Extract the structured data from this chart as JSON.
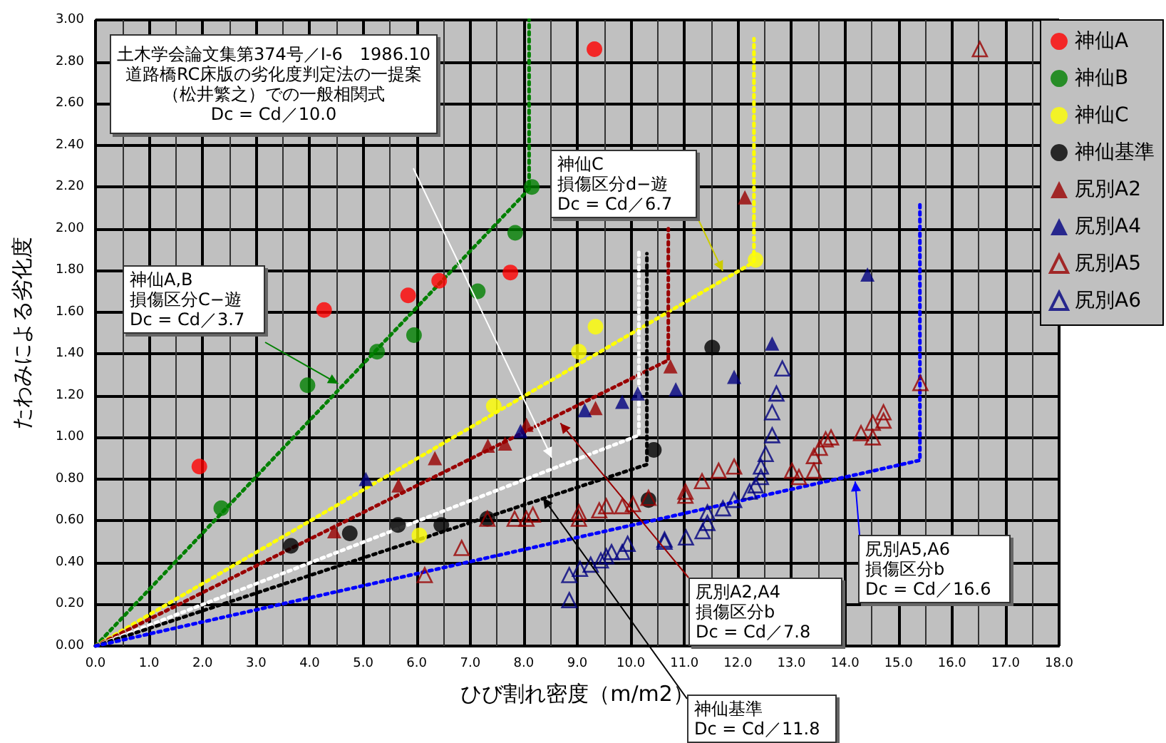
{
  "chart_data": {
    "type": "scatter",
    "xlabel": "ひび割れ密度（m/m2）",
    "ylabel": "たわみによる劣化度",
    "xlim": [
      0,
      18
    ],
    "ylim": [
      0,
      3
    ],
    "xticks": [
      {
        "value": 0,
        "label": "0.0"
      },
      {
        "value": 1,
        "label": "1.0"
      },
      {
        "value": 2,
        "label": "2.0"
      },
      {
        "value": 3,
        "label": "3.0"
      },
      {
        "value": 4,
        "label": "4.0"
      },
      {
        "value": 5,
        "label": "5.0"
      },
      {
        "value": 6,
        "label": "6.0"
      },
      {
        "value": 7,
        "label": "7.0"
      },
      {
        "value": 8,
        "label": "8.0"
      },
      {
        "value": 9,
        "label": "9.0"
      },
      {
        "value": 10,
        "label": "10.0"
      },
      {
        "value": 11,
        "label": "11.0"
      },
      {
        "value": 12,
        "label": "12.0"
      },
      {
        "value": 13,
        "label": "13.0"
      },
      {
        "value": 14,
        "label": "14.0"
      },
      {
        "value": 15,
        "label": "15.0"
      },
      {
        "value": 16,
        "label": "16.0"
      },
      {
        "value": 17,
        "label": "17.0"
      },
      {
        "value": 18,
        "label": "18.0"
      }
    ],
    "yticks": [
      {
        "value": 0,
        "label": "0.00"
      },
      {
        "value": 0.2,
        "label": "0.20"
      },
      {
        "value": 0.4,
        "label": "0.40"
      },
      {
        "value": 0.6,
        "label": "0.60"
      },
      {
        "value": 0.8,
        "label": "0.80"
      },
      {
        "value": 1,
        "label": "1.00"
      },
      {
        "value": 1.2,
        "label": "1.20"
      },
      {
        "value": 1.4,
        "label": "1.40"
      },
      {
        "value": 1.6,
        "label": "1.60"
      },
      {
        "value": 1.8,
        "label": "1.80"
      },
      {
        "value": 2,
        "label": "2.00"
      },
      {
        "value": 2.2,
        "label": "2.20"
      },
      {
        "value": 2.4,
        "label": "2.40"
      },
      {
        "value": 2.6,
        "label": "2.60"
      },
      {
        "value": 2.8,
        "label": "2.80"
      },
      {
        "value": 3,
        "label": "3.00"
      }
    ],
    "grid": true,
    "legend": "right",
    "series": [
      {
        "name": "神仙A",
        "color": "#ff0000",
        "marker": "circle",
        "x": [
          1.94,
          4.27,
          5.84,
          6.42,
          7.75,
          9.32
        ],
        "values": [
          0.86,
          1.61,
          1.68,
          1.75,
          1.79,
          2.86
        ]
      },
      {
        "name": "神仙B",
        "color": "#008000",
        "marker": "circle",
        "x": [
          2.35,
          3.96,
          5.26,
          5.95,
          7.14,
          7.84,
          8.15
        ],
        "values": [
          0.66,
          1.25,
          1.41,
          1.49,
          1.7,
          1.98,
          2.2
        ]
      },
      {
        "name": "神仙C",
        "color": "#ffff00",
        "marker": "circle",
        "x": [
          6.05,
          7.44,
          9.03,
          9.34,
          12.33
        ],
        "values": [
          0.53,
          1.15,
          1.41,
          1.53,
          1.85
        ]
      },
      {
        "name": "神仙基準",
        "color": "#000000",
        "marker": "circle",
        "x": [
          3.65,
          4.75,
          5.65,
          6.46,
          7.32,
          10.33,
          10.43,
          11.52
        ],
        "values": [
          0.48,
          0.54,
          0.58,
          0.58,
          0.61,
          0.7,
          0.94,
          1.43
        ]
      },
      {
        "name": "尻別A2",
        "color": "#990000",
        "marker": "triangle",
        "x": [
          4.46,
          5.66,
          6.34,
          7.33,
          7.65,
          8.05,
          9.34,
          10.74,
          12.13
        ],
        "values": [
          0.55,
          0.77,
          0.9,
          0.96,
          0.97,
          1.06,
          1.14,
          1.34,
          2.15
        ]
      },
      {
        "name": "尻別A4",
        "color": "#000080",
        "marker": "triangle",
        "x": [
          5.05,
          7.94,
          9.14,
          9.84,
          10.13,
          10.84,
          11.93,
          12.64,
          14.42
        ],
        "values": [
          0.8,
          1.03,
          1.13,
          1.17,
          1.21,
          1.23,
          1.29,
          1.45,
          1.78
        ]
      },
      {
        "name": "尻別A5",
        "color": "#990000",
        "marker": "triangle-open",
        "x": [
          6.15,
          6.84,
          7.32,
          7.83,
          8.05,
          8.17,
          9.03,
          9.03,
          9.41,
          9.54,
          9.84,
          10.04,
          10.33,
          11.02,
          11.02,
          11.33,
          11.64,
          11.93,
          13.01,
          13.14,
          13.42,
          13.42,
          13.53,
          13.64,
          13.74,
          14.3,
          14.52,
          14.52,
          14.72,
          14.72,
          15.41,
          16.52
        ],
        "values": [
          0.34,
          0.47,
          0.61,
          0.61,
          0.61,
          0.63,
          0.64,
          0.61,
          0.65,
          0.67,
          0.67,
          0.68,
          0.71,
          0.74,
          0.72,
          0.79,
          0.84,
          0.86,
          0.84,
          0.81,
          0.84,
          0.91,
          0.95,
          0.99,
          1.0,
          1.02,
          1.0,
          1.07,
          1.08,
          1.12,
          1.26,
          2.86
        ]
      },
      {
        "name": "尻別A6",
        "color": "#000080",
        "marker": "triangle-open",
        "x": [
          8.85,
          8.85,
          9.05,
          9.25,
          9.44,
          9.54,
          9.64,
          9.84,
          9.94,
          10.63,
          10.63,
          11.03,
          11.34,
          11.43,
          11.43,
          11.72,
          11.93,
          12.22,
          12.33,
          12.43,
          12.43,
          12.52,
          12.64,
          12.64,
          12.72,
          12.83
        ],
        "values": [
          0.34,
          0.22,
          0.37,
          0.39,
          0.41,
          0.43,
          0.45,
          0.45,
          0.49,
          0.51,
          0.5,
          0.52,
          0.55,
          0.59,
          0.64,
          0.66,
          0.7,
          0.74,
          0.77,
          0.81,
          0.86,
          0.92,
          1.01,
          1.12,
          1.21,
          1.33
        ]
      },
      {
        "type": "line",
        "color": "#008000",
        "line_style": "dotted",
        "marker": "none",
        "x": [
          0,
          8.1,
          8.1
        ],
        "values": [
          0,
          2.19,
          3.0
        ]
      },
      {
        "type": "line",
        "color": "#ffff00",
        "line_style": "dotted",
        "marker": "none",
        "x": [
          0,
          12.3,
          12.3
        ],
        "values": [
          0,
          1.84,
          2.91
        ]
      },
      {
        "type": "line",
        "color": "#990000",
        "line_style": "dotted",
        "marker": "none",
        "x": [
          0,
          10.7,
          10.7
        ],
        "values": [
          0,
          1.37,
          2.0
        ]
      },
      {
        "type": "line",
        "color": "#ffffff",
        "line_style": "dotted",
        "marker": "none",
        "x": [
          0,
          10.15,
          10.15
        ],
        "values": [
          0,
          1.01,
          1.9
        ]
      },
      {
        "type": "line",
        "color": "#000000",
        "line_style": "dotted",
        "marker": "none",
        "x": [
          0,
          10.3,
          10.3
        ],
        "values": [
          0,
          0.87,
          1.88
        ]
      },
      {
        "type": "line",
        "color": "#0000ff",
        "line_style": "dotted",
        "marker": "none",
        "x": [
          0,
          15.4,
          15.4
        ],
        "values": [
          0,
          0.89,
          2.12
        ]
      }
    ],
    "annotations": [
      "土木学会論文集第374号／Ⅰ-6　1986.10\n道路橋RC床版の劣化度判定法の一提案（松井繁之）での一般相関式\nDc = Cd／10.0",
      "神仙A,B\n損傷区分C−遊\nDc = Cd／3.7",
      "神仙C\n損傷区分d−遊\nDc = Cd／6.7",
      "尻別A2,A4\n損傷区分b\nDc = Cd／7.8",
      "尻別A5,A6\n損傷区分b\nDc = Cd／16.6",
      {
        "text": "神仙基準\nDc = Cd／11.8",
        "x": 8.36,
        "y": 0.71
      }
    ]
  }
}
